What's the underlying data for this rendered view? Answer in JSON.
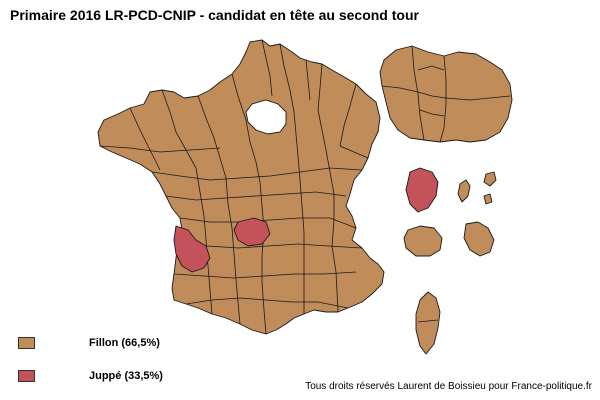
{
  "title": "Primaire 2016 LR-PCD-CNIP - candidat en tête au second tour",
  "colors": {
    "fillon": "#c08c5a",
    "juppe": "#c4525a",
    "border": "#1a1a1a",
    "background": "#ffffff"
  },
  "legend": [
    {
      "key": "fillon",
      "label": "Fillon (66,5%)",
      "color": "#c08c5a"
    },
    {
      "key": "juppe",
      "label": "Juppé (33,5%)",
      "color": "#c4525a"
    }
  ],
  "credit": "Tous droits réservés Laurent de Boissieu pour France-politique.fr"
}
